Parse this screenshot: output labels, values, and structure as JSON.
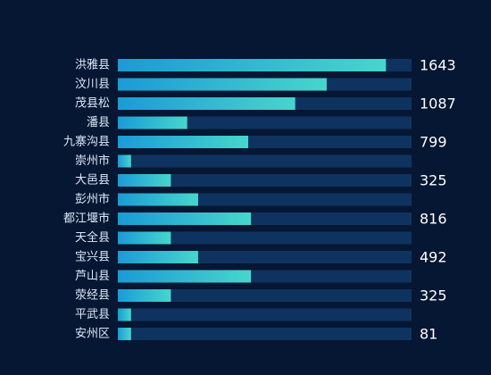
{
  "chart_data": {
    "type": "bar",
    "orientation": "horizontal",
    "categories": [
      "洪雅县",
      "汶川县",
      "茂县松",
      "潘县",
      "九寨沟县",
      "崇州市",
      "大邑县",
      "彭州市",
      "都江堰市",
      "天全县",
      "宝兴县",
      "芦山县",
      "荥经县",
      "平武县",
      "安州区"
    ],
    "values": [
      1643,
      1280,
      1087,
      425,
      799,
      81,
      325,
      492,
      816,
      325,
      492,
      816,
      325,
      81,
      81
    ],
    "value_labels": [
      "1643",
      "",
      "1087",
      "",
      "799",
      "",
      "325",
      "",
      "816",
      "",
      "492",
      "",
      "325",
      "",
      "81"
    ],
    "xlim": [
      0,
      1800
    ],
    "grid": false,
    "legend": "none",
    "colors": {
      "background": "#061733",
      "track": "#0f3360",
      "bar_start": "#1a9bd6",
      "bar_end": "#46d6cc",
      "category_text": "#dce8f7",
      "value_text": "#ffffff"
    }
  }
}
